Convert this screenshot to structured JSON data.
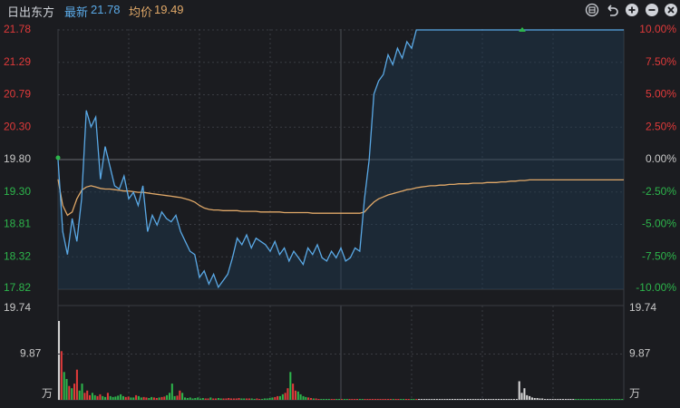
{
  "header": {
    "stock_name": "日出东方",
    "latest_label": "最新",
    "latest_value": "21.78",
    "avg_label": "均价",
    "avg_value": "19.49",
    "icons": [
      "settings-icon",
      "undo-icon",
      "zoom-in-icon",
      "zoom-out-icon",
      "close-icon"
    ]
  },
  "colors": {
    "background": "#1b1c20",
    "grid": "#3a3c42",
    "price_line": "#5aa9e6",
    "price_fill": "#1f3a52",
    "avg_line": "#e0a868",
    "up": "#e03a3a",
    "down": "#2db54b",
    "neutral": "#c8c8c8",
    "latest": "#5aa9e6",
    "avg_text": "#e0a868"
  },
  "chart_data": [
    {
      "type": "line",
      "name": "intraday price",
      "prev_close": 19.8,
      "ylim": [
        17.82,
        21.78
      ],
      "y_ticks_left": [
        "21.78",
        "21.29",
        "20.79",
        "20.30",
        "19.80",
        "19.30",
        "18.81",
        "18.32",
        "17.82"
      ],
      "y_ticks_right": [
        "10.00%",
        "7.50%",
        "5.00%",
        "2.50%",
        "0.00%",
        "-2.50%",
        "-5.00%",
        "-7.50%",
        "-10.00%"
      ],
      "x": [
        0,
        2,
        4,
        6,
        8,
        10,
        12,
        14,
        16,
        18,
        20,
        22,
        24,
        26,
        28,
        30,
        32,
        34,
        36,
        38,
        40,
        42,
        44,
        46,
        48,
        50,
        52,
        54,
        56,
        58,
        60,
        62,
        64,
        66,
        68,
        70,
        72,
        74,
        76,
        78,
        80,
        82,
        84,
        86,
        88,
        90,
        92,
        94,
        96,
        98,
        100,
        102,
        104,
        106,
        108,
        110,
        112,
        114,
        116,
        118,
        120,
        122,
        124,
        126,
        128,
        130,
        132,
        134,
        136,
        138,
        140,
        142,
        144,
        146,
        148,
        150,
        152,
        154,
        156,
        158,
        160,
        162,
        164,
        166,
        168,
        170,
        172,
        174,
        176,
        178,
        180,
        182,
        184,
        186,
        188,
        190,
        192,
        194,
        196,
        198,
        200,
        202,
        204,
        206,
        208,
        210,
        212,
        214,
        216,
        218,
        220,
        222,
        224,
        226,
        228,
        230,
        232,
        234,
        236,
        238,
        240
      ],
      "series": [
        {
          "name": "",
          "values": [
            19.8,
            18.7,
            18.35,
            18.9,
            18.55,
            19.2,
            20.55,
            20.3,
            20.45,
            19.5,
            20.0,
            19.7,
            19.4,
            19.35,
            19.55,
            19.2,
            19.3,
            19.1,
            19.4,
            18.7,
            18.95,
            18.8,
            19.0,
            18.9,
            18.85,
            18.95,
            18.7,
            18.55,
            18.4,
            18.35,
            18.0,
            18.1,
            17.9,
            18.05,
            17.85,
            17.95,
            18.05,
            18.3,
            18.6,
            18.5,
            18.65,
            18.45,
            18.6,
            18.55,
            18.5,
            18.4,
            18.55,
            18.35,
            18.45,
            18.25,
            18.4,
            18.3,
            18.2,
            18.45,
            18.35,
            18.5,
            18.3,
            18.25,
            18.4,
            18.3,
            18.45,
            18.25,
            18.3,
            18.45,
            18.4,
            19.2,
            19.8,
            20.8,
            21.0,
            21.1,
            21.4,
            21.25,
            21.5,
            21.35,
            21.6,
            21.5,
            21.78,
            21.78,
            21.78,
            21.78,
            21.78,
            21.78,
            21.78,
            21.78,
            21.78,
            21.78,
            21.78,
            21.78,
            21.78,
            21.78,
            21.78,
            21.78,
            21.78,
            21.78,
            21.78,
            21.78,
            21.78,
            21.78,
            21.78,
            21.78,
            21.78,
            21.78,
            21.78,
            21.78,
            21.78,
            21.78,
            21.78,
            21.78,
            21.78,
            21.78,
            21.78,
            21.78,
            21.78,
            21.78,
            21.78,
            21.78,
            21.78,
            21.78,
            21.78,
            21.78,
            21.78
          ]
        },
        {
          "name": "",
          "values": [
            19.5,
            19.1,
            18.95,
            19.0,
            19.2,
            19.33,
            19.38,
            19.4,
            19.38,
            19.36,
            19.35,
            19.35,
            19.34,
            19.33,
            19.32,
            19.32,
            19.31,
            19.3,
            19.3,
            19.29,
            19.28,
            19.27,
            19.26,
            19.25,
            19.24,
            19.23,
            19.22,
            19.2,
            19.18,
            19.15,
            19.1,
            19.06,
            19.04,
            19.03,
            19.03,
            19.02,
            19.02,
            19.02,
            19.02,
            19.01,
            19.01,
            19.01,
            19.01,
            19.0,
            19.0,
            19.0,
            19.0,
            19.0,
            18.99,
            18.99,
            18.99,
            18.99,
            18.99,
            18.99,
            18.98,
            18.98,
            18.98,
            18.98,
            18.98,
            18.98,
            18.98,
            18.98,
            18.98,
            18.98,
            18.98,
            19.0,
            19.08,
            19.15,
            19.2,
            19.23,
            19.26,
            19.28,
            19.3,
            19.32,
            19.34,
            19.35,
            19.37,
            19.38,
            19.39,
            19.4,
            19.4,
            19.41,
            19.41,
            19.42,
            19.42,
            19.43,
            19.43,
            19.43,
            19.44,
            19.44,
            19.44,
            19.45,
            19.45,
            19.45,
            19.46,
            19.46,
            19.47,
            19.47,
            19.48,
            19.48,
            19.49,
            19.49,
            19.49,
            19.49,
            19.49,
            19.49,
            19.49,
            19.49,
            19.49,
            19.49,
            19.49,
            19.49,
            19.49,
            19.49,
            19.49,
            19.49,
            19.49,
            19.49,
            19.49,
            19.49,
            19.49
          ]
        }
      ]
    },
    {
      "type": "bar",
      "name": "volume",
      "unit": "万",
      "ylim": [
        0,
        19.74
      ],
      "y_ticks": [
        "19.74",
        "9.87"
      ],
      "values": [
        17.0,
        10.5,
        6.0,
        4.5,
        3.0,
        2.5,
        3.5,
        6.5,
        2.0,
        3.5,
        1.5,
        2.0,
        1.0,
        1.5,
        1.0,
        0.8,
        1.2,
        0.8,
        0.6,
        1.5,
        0.8,
        0.6,
        0.7,
        0.9,
        1.2,
        0.8,
        0.6,
        0.7,
        0.5,
        0.5,
        1.0,
        0.8,
        0.5,
        0.6,
        0.5,
        0.4,
        0.6,
        0.5,
        0.4,
        0.5,
        0.6,
        0.7,
        1.0,
        1.5,
        3.5,
        0.8,
        0.9,
        2.0,
        1.5,
        0.5,
        0.4,
        0.5,
        0.3,
        0.4,
        0.5,
        0.3,
        0.4,
        0.3,
        0.3,
        0.5,
        0.3,
        0.3,
        0.4,
        0.3,
        0.3,
        0.3,
        0.4,
        0.3,
        0.3,
        0.3,
        0.4,
        0.3,
        0.3,
        0.3,
        0.3,
        0.3,
        0.2,
        0.3,
        0.2,
        0.2,
        0.3,
        0.3,
        0.4,
        0.5,
        0.6,
        0.8,
        0.8,
        1.2,
        1.5,
        2.5,
        6.0,
        3.5,
        2.0,
        1.8,
        1.2,
        0.8,
        0.6,
        0.5,
        0.4,
        0.3,
        0.3,
        0.2,
        0.2,
        0.2,
        0.2,
        0.2,
        0.2,
        0.2,
        0.2,
        0.2,
        0.2,
        0.2,
        0.2,
        0.2,
        0.2,
        0.2,
        0.2,
        0.2,
        0.2,
        0.2,
        0.2,
        0.2,
        0.2,
        0.2,
        0.2,
        0.2,
        0.2,
        0.2,
        0.2,
        0.2,
        0.2,
        0.2,
        0.2,
        0.2,
        0.2,
        0.2,
        0.2,
        0.2,
        0.2,
        0.2,
        0.2,
        0.2,
        0.2,
        0.2,
        0.2,
        0.2,
        0.2,
        0.2,
        0.2,
        0.2,
        0.2,
        0.2,
        0.2,
        0.2,
        0.2,
        0.2,
        0.2,
        0.2,
        0.2,
        0.2,
        0.2,
        0.2,
        0.2,
        0.2,
        0.2,
        0.2,
        0.2,
        0.2,
        0.2,
        0.2,
        0.2,
        0.2,
        0.2,
        0.2,
        0.2,
        0.2,
        0.2,
        0.2,
        0.2,
        4.0,
        1.5,
        2.5,
        1.0,
        0.8,
        0.5,
        0.4,
        0.4,
        0.3,
        0.3,
        0.2,
        0.2,
        0.2,
        0.2,
        0.2,
        0.2,
        0.2,
        0.2,
        0.2,
        0.2,
        0.2,
        0.2,
        0.2,
        0.2,
        0.2,
        0.2,
        0.2,
        0.2,
        0.2,
        0.2,
        0.2,
        0.2,
        0.2,
        0.2,
        0.2,
        0.2,
        0.2,
        0.2,
        0.2,
        0.2,
        0.2
      ]
    }
  ]
}
